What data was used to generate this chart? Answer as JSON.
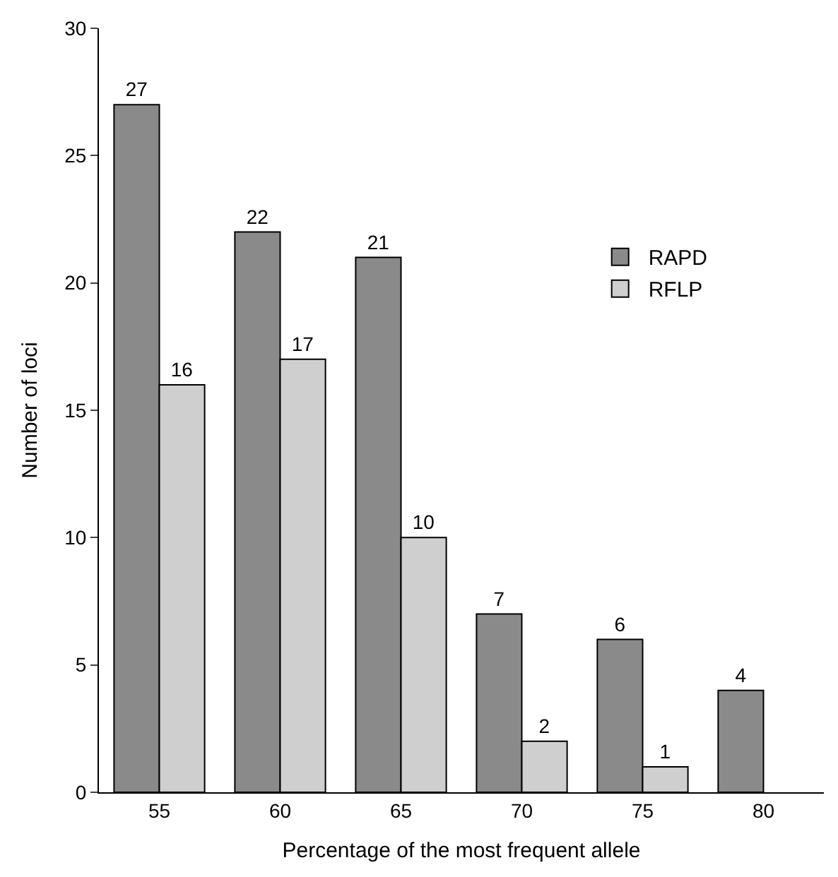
{
  "chart_data": {
    "type": "bar",
    "xlabel": "Percentage of the most frequent allele",
    "ylabel": "Number of loci",
    "categories": [
      "55",
      "60",
      "65",
      "70",
      "75",
      "80"
    ],
    "series": [
      {
        "name": "RAPD",
        "color": "#8a8a8a",
        "values": [
          27,
          22,
          21,
          7,
          6,
          4
        ]
      },
      {
        "name": "RFLP",
        "color": "#cfcfcf",
        "values": [
          16,
          17,
          10,
          2,
          1,
          null
        ]
      }
    ],
    "ylim": [
      0,
      30
    ],
    "yticks": [
      0,
      5,
      10,
      15,
      20,
      25,
      30
    ],
    "data_labels": true,
    "legend": "right"
  }
}
